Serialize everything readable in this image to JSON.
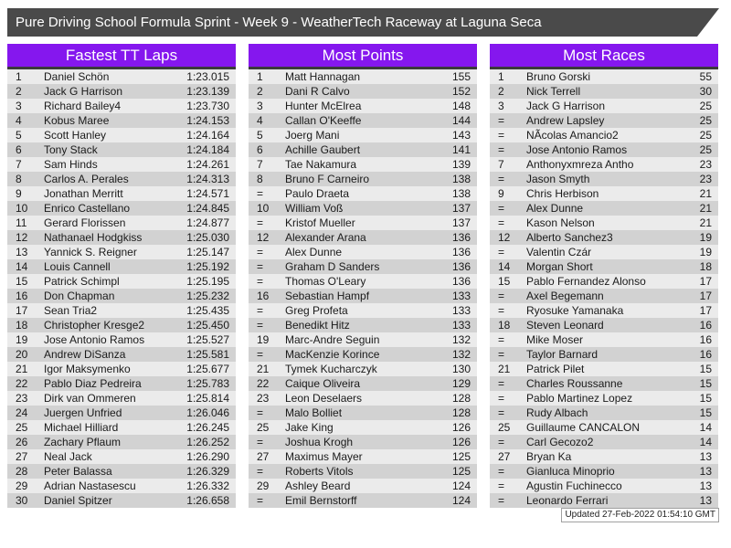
{
  "title_bar": {
    "text": "Pure Driving School Formula Sprint - Week 9 - WeatherTech Raceway at Laguna Seca"
  },
  "colors": {
    "accent_purple": "#8517ee",
    "title_bar_bg": "#4a4a4a",
    "header_underline": "#3b3b3b",
    "row_odd": "#ebebeb",
    "row_even": "#d2d2d2"
  },
  "footer": {
    "updated_text": "Updated 27-Feb-2022 01:54:10 GMT"
  },
  "tables": [
    {
      "title": "Fastest TT Laps",
      "rows": [
        [
          "1",
          "Daniel Schön",
          "1:23.015"
        ],
        [
          "2",
          "Jack G Harrison",
          "1:23.139"
        ],
        [
          "3",
          "Richard Bailey4",
          "1:23.730"
        ],
        [
          "4",
          "Kobus Maree",
          "1:24.153"
        ],
        [
          "5",
          "Scott Hanley",
          "1:24.164"
        ],
        [
          "6",
          "Tony Stack",
          "1:24.184"
        ],
        [
          "7",
          "Sam Hinds",
          "1:24.261"
        ],
        [
          "8",
          "Carlos A. Perales",
          "1:24.313"
        ],
        [
          "9",
          "Jonathan Merritt",
          "1:24.571"
        ],
        [
          "10",
          "Enrico Castellano",
          "1:24.845"
        ],
        [
          "11",
          "Gerard Florissen",
          "1:24.877"
        ],
        [
          "12",
          "Nathanael Hodgkiss",
          "1:25.030"
        ],
        [
          "13",
          "Yannick S. Reigner",
          "1:25.147"
        ],
        [
          "14",
          "Louis Cannell",
          "1:25.192"
        ],
        [
          "15",
          "Patrick Schimpl",
          "1:25.195"
        ],
        [
          "16",
          "Don Chapman",
          "1:25.232"
        ],
        [
          "17",
          "Sean Tria2",
          "1:25.435"
        ],
        [
          "18",
          "Christopher Kresge2",
          "1:25.450"
        ],
        [
          "19",
          "Jose Antonio Ramos",
          "1:25.527"
        ],
        [
          "20",
          "Andrew DiSanza",
          "1:25.581"
        ],
        [
          "21",
          "Igor Maksymenko",
          "1:25.677"
        ],
        [
          "22",
          "Pablo Diaz Pedreira",
          "1:25.783"
        ],
        [
          "23",
          "Dirk van Ommeren",
          "1:25.814"
        ],
        [
          "24",
          "Juergen Unfried",
          "1:26.046"
        ],
        [
          "25",
          "Michael Hilliard",
          "1:26.245"
        ],
        [
          "26",
          "Zachary Pflaum",
          "1:26.252"
        ],
        [
          "27",
          "Neal Jack",
          "1:26.290"
        ],
        [
          "28",
          "Peter Balassa",
          "1:26.329"
        ],
        [
          "29",
          "Adrian Nastasescu",
          "1:26.332"
        ],
        [
          "30",
          "Daniel Spitzer",
          "1:26.658"
        ]
      ]
    },
    {
      "title": "Most Points",
      "rows": [
        [
          "1",
          "Matt Hannagan",
          "155"
        ],
        [
          "2",
          "Dani R Calvo",
          "152"
        ],
        [
          "3",
          "Hunter McElrea",
          "148"
        ],
        [
          "4",
          "Callan O'Keeffe",
          "144"
        ],
        [
          "5",
          "Joerg Mani",
          "143"
        ],
        [
          "6",
          "Achille Gaubert",
          "141"
        ],
        [
          "7",
          "Tae Nakamura",
          "139"
        ],
        [
          "8",
          "Bruno F Carneiro",
          "138"
        ],
        [
          "=",
          "Paulo Draeta",
          "138"
        ],
        [
          "10",
          "William Voß",
          "137"
        ],
        [
          "=",
          "Kristof Mueller",
          "137"
        ],
        [
          "12",
          "Alexander Arana",
          "136"
        ],
        [
          "=",
          "Alex Dunne",
          "136"
        ],
        [
          "=",
          "Graham D Sanders",
          "136"
        ],
        [
          "=",
          "Thomas O'Leary",
          "136"
        ],
        [
          "16",
          "Sebastian Hampf",
          "133"
        ],
        [
          "=",
          "Greg Profeta",
          "133"
        ],
        [
          "=",
          "Benedikt Hitz",
          "133"
        ],
        [
          "19",
          "Marc-Andre Seguin",
          "132"
        ],
        [
          "=",
          "MacKenzie Korince",
          "132"
        ],
        [
          "21",
          "Tymek Kucharczyk",
          "130"
        ],
        [
          "22",
          "Caique Oliveira",
          "129"
        ],
        [
          "23",
          "Leon Deselaers",
          "128"
        ],
        [
          "=",
          "Malo Bolliet",
          "128"
        ],
        [
          "25",
          "Jake King",
          "126"
        ],
        [
          "=",
          "Joshua Krogh",
          "126"
        ],
        [
          "27",
          "Maximus Mayer",
          "125"
        ],
        [
          "=",
          "Roberts Vitols",
          "125"
        ],
        [
          "29",
          "Ashley Beard",
          "124"
        ],
        [
          "=",
          "Emil Bernstorff",
          "124"
        ]
      ]
    },
    {
      "title": "Most Races",
      "rows": [
        [
          "1",
          "Bruno Gorski",
          "55"
        ],
        [
          "2",
          "Nick Terrell",
          "30"
        ],
        [
          "3",
          "Jack G Harrison",
          "25"
        ],
        [
          "=",
          "Andrew Lapsley",
          "25"
        ],
        [
          "=",
          "NÃcolas Amancio2",
          "25"
        ],
        [
          "=",
          "Jose Antonio Ramos",
          "25"
        ],
        [
          "7",
          "Anthonyxmreza Antho",
          "23"
        ],
        [
          "=",
          "Jason Smyth",
          "23"
        ],
        [
          "9",
          "Chris Herbison",
          "21"
        ],
        [
          "=",
          "Alex Dunne",
          "21"
        ],
        [
          "=",
          "Kason Nelson",
          "21"
        ],
        [
          "12",
          "Alberto Sanchez3",
          "19"
        ],
        [
          "=",
          "Valentin Czár",
          "19"
        ],
        [
          "14",
          "Morgan Short",
          "18"
        ],
        [
          "15",
          "Pablo Fernandez Alonso",
          "17"
        ],
        [
          "=",
          "Axel Begemann",
          "17"
        ],
        [
          "=",
          "Ryosuke Yamanaka",
          "17"
        ],
        [
          "18",
          "Steven Leonard",
          "16"
        ],
        [
          "=",
          "Mike Moser",
          "16"
        ],
        [
          "=",
          "Taylor Barnard",
          "16"
        ],
        [
          "21",
          "Patrick Pilet",
          "15"
        ],
        [
          "=",
          "Charles Roussanne",
          "15"
        ],
        [
          "=",
          "Pablo Martinez Lopez",
          "15"
        ],
        [
          "=",
          "Rudy Albach",
          "15"
        ],
        [
          "25",
          "Guillaume CANCALON",
          "14"
        ],
        [
          "=",
          "Carl Gecozo2",
          "14"
        ],
        [
          "27",
          "Bryan Ka",
          "13"
        ],
        [
          "=",
          "Gianluca Minoprio",
          "13"
        ],
        [
          "=",
          "Agustin Fuchinecco",
          "13"
        ],
        [
          "=",
          "Leonardo Ferrari",
          "13"
        ]
      ]
    }
  ]
}
